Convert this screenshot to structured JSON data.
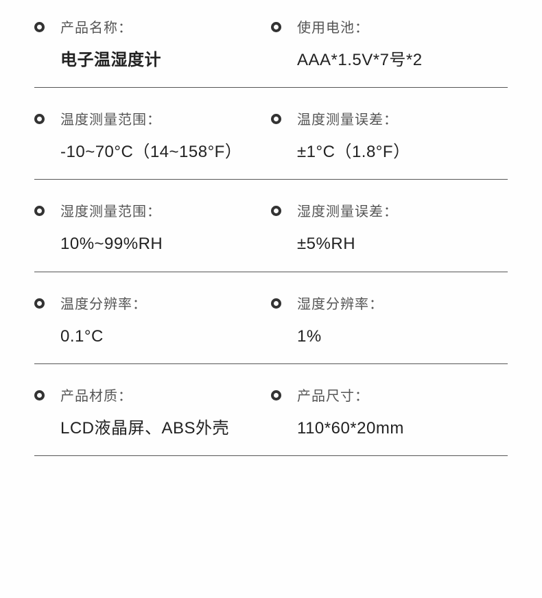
{
  "specs": [
    {
      "label": "产品名称：",
      "value": "电子温湿度计",
      "bold": true
    },
    {
      "label": "使用电池：",
      "value": "AAA*1.5V*7号*2",
      "bold": false
    },
    {
      "label": "温度测量范围：",
      "value": "-10~70°C（14~158°F）",
      "bold": false
    },
    {
      "label": "温度测量误差：",
      "value": "±1°C（1.8°F）",
      "bold": false
    },
    {
      "label": "湿度测量范围：",
      "value": "10%~99%RH",
      "bold": false
    },
    {
      "label": "湿度测量误差：",
      "value": "±5%RH",
      "bold": false
    },
    {
      "label": "温度分辨率：",
      "value": "0.1°C",
      "bold": false
    },
    {
      "label": "湿度分辨率：",
      "value": "1%",
      "bold": false
    },
    {
      "label": "产品材质：",
      "value": "LCD液晶屏、ABS外壳",
      "bold": false
    },
    {
      "label": "产品尺寸：",
      "value": "110*60*20mm",
      "bold": false
    }
  ],
  "style": {
    "background_color": "#fefefe",
    "text_color": "#333",
    "label_color": "#555",
    "divider_color": "#555",
    "bullet_border_color": "#333",
    "label_fontsize": 20,
    "value_fontsize": 24,
    "columns": 2,
    "rows": 5
  }
}
